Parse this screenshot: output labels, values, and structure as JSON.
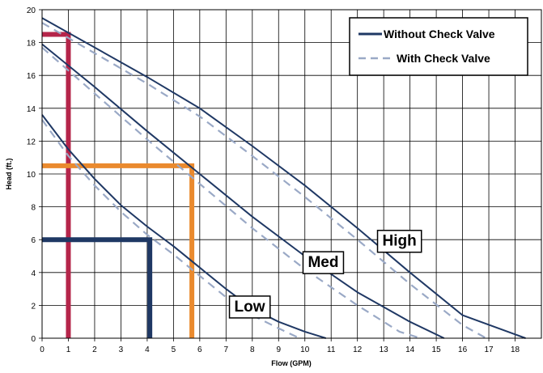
{
  "chart_data": {
    "type": "line",
    "xlabel": "Flow (GPM)",
    "ylabel": "Head (ft.)",
    "xlim": [
      0,
      19
    ],
    "ylim": [
      0,
      20
    ],
    "xticks": [
      "0",
      "1",
      "2",
      "3",
      "4",
      "5",
      "6",
      "7",
      "8",
      "9",
      "10",
      "11",
      "12",
      "13",
      "14",
      "15",
      "16",
      "17",
      "18"
    ],
    "yticks": [
      "0",
      "2",
      "4",
      "6",
      "8",
      "10",
      "12",
      "14",
      "16",
      "18",
      "20"
    ],
    "grid": true,
    "legend_position": "top-right",
    "legend": [
      {
        "label": "Without Check Valve",
        "color": "#1f3864",
        "style": "solid"
      },
      {
        "label": "With Check Valve",
        "color": "#9aa9c6",
        "style": "dashed"
      }
    ],
    "series": [
      {
        "curve": "High",
        "check_valve": false,
        "color": "#1f3864",
        "style": "solid",
        "points": [
          [
            0,
            19.5
          ],
          [
            4,
            15.9
          ],
          [
            6,
            14.0
          ],
          [
            8,
            11.7
          ],
          [
            10,
            9.3
          ],
          [
            12,
            6.7
          ],
          [
            14,
            4.0
          ],
          [
            16,
            1.4
          ],
          [
            18.4,
            0
          ]
        ]
      },
      {
        "curve": "High",
        "check_valve": true,
        "color": "#9aa9c6",
        "style": "dashed",
        "points": [
          [
            0,
            19.2
          ],
          [
            4,
            15.5
          ],
          [
            6,
            13.5
          ],
          [
            8,
            11.1
          ],
          [
            10,
            8.6
          ],
          [
            12,
            6.0
          ],
          [
            14,
            3.3
          ],
          [
            16,
            0.8
          ],
          [
            16.9,
            0
          ]
        ]
      },
      {
        "curve": "Med",
        "check_valve": false,
        "color": "#1f3864",
        "style": "solid",
        "points": [
          [
            0,
            17.9
          ],
          [
            2,
            15.3
          ],
          [
            4,
            12.6
          ],
          [
            6,
            10.0
          ],
          [
            8,
            7.4
          ],
          [
            10,
            5.0
          ],
          [
            12,
            2.8
          ],
          [
            14,
            1.0
          ],
          [
            15.3,
            0
          ]
        ]
      },
      {
        "curve": "Med",
        "check_valve": true,
        "color": "#9aa9c6",
        "style": "dashed",
        "points": [
          [
            0,
            17.7
          ],
          [
            2,
            14.9
          ],
          [
            4,
            12.1
          ],
          [
            6,
            9.4
          ],
          [
            8,
            6.7
          ],
          [
            10,
            4.2
          ],
          [
            12,
            2.0
          ],
          [
            13.6,
            0.4
          ],
          [
            14.4,
            0
          ]
        ]
      },
      {
        "curve": "Low",
        "check_valve": false,
        "color": "#1f3864",
        "style": "solid",
        "points": [
          [
            0,
            13.6
          ],
          [
            1,
            11.5
          ],
          [
            2,
            9.7
          ],
          [
            3,
            8.1
          ],
          [
            4,
            6.8
          ],
          [
            5,
            5.6
          ],
          [
            6,
            4.3
          ],
          [
            7,
            3.0
          ],
          [
            8,
            1.8
          ],
          [
            9,
            1.0
          ],
          [
            10,
            0.4
          ],
          [
            10.8,
            0
          ]
        ]
      },
      {
        "curve": "Low",
        "check_valve": true,
        "color": "#9aa9c6",
        "style": "dashed",
        "points": [
          [
            0,
            13.3
          ],
          [
            1,
            11.1
          ],
          [
            2,
            9.3
          ],
          [
            3,
            7.7
          ],
          [
            4,
            6.3
          ],
          [
            5,
            5.1
          ],
          [
            6,
            3.8
          ],
          [
            7,
            2.5
          ],
          [
            8,
            1.4
          ],
          [
            9,
            0.6
          ],
          [
            9.8,
            0
          ]
        ]
      }
    ],
    "operating_points": [
      {
        "flow": 1.0,
        "head": 18.5,
        "color": "#b5254a"
      },
      {
        "flow": 5.7,
        "head": 10.5,
        "color": "#ea8a2e"
      },
      {
        "flow": 4.1,
        "head": 6.0,
        "color": "#1f3864"
      }
    ],
    "curve_labels": [
      {
        "text": "High",
        "x": 13.6,
        "y": 5.9
      },
      {
        "text": "Med",
        "x": 10.7,
        "y": 4.6
      },
      {
        "text": "Low",
        "x": 7.9,
        "y": 1.9
      }
    ]
  }
}
